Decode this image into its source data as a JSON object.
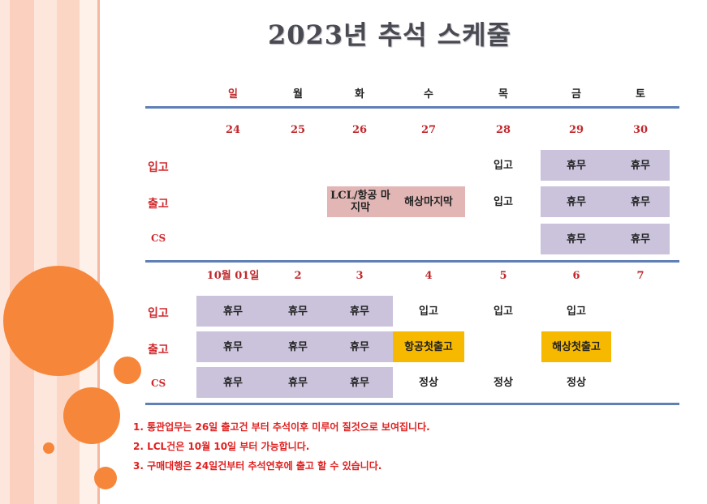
{
  "title": "2023년 추석 스케줄",
  "weekdays": [
    "일",
    "월",
    "화",
    "수",
    "목",
    "금",
    "토"
  ],
  "week1": {
    "dates": [
      "24",
      "25",
      "26",
      "27",
      "28",
      "29",
      "30"
    ],
    "inbound_label": "입고",
    "inbound": {
      "thu": "입고",
      "fri": "휴무",
      "sat": "휴무"
    },
    "outbound_label": "출고",
    "outbound": {
      "tue": "LCL/항공 마지막",
      "wed": "해상마지막",
      "thu": "입고",
      "fri": "휴무",
      "sat": "휴무"
    },
    "cs_label": "CS",
    "cs": {
      "fri": "휴무",
      "sat": "휴무"
    }
  },
  "week2": {
    "dates": [
      "10월 01일",
      "2",
      "3",
      "4",
      "5",
      "6",
      "7"
    ],
    "inbound_label": "입고",
    "inbound": {
      "sun": "휴무",
      "mon": "휴무",
      "tue": "휴무",
      "wed": "입고",
      "thu": "입고",
      "fri": "입고"
    },
    "outbound_label": "출고",
    "outbound": {
      "sun": "휴무",
      "mon": "휴무",
      "tue": "휴무",
      "wed": "항공첫출고",
      "fri": "해상첫출고"
    },
    "cs_label": "CS",
    "cs": {
      "sun": "휴무",
      "mon": "휴무",
      "tue": "휴무",
      "wed": "정상",
      "thu": "정상",
      "fri": "정상"
    }
  },
  "notes": [
    "1. 통관업무는 26일 출고건 부터 추석이후 미루어 질것으로 보여집니다.",
    "2. LCL건은 10월 10일 부터 가능합니다.",
    "3. 구매대행은 24일건부터 추석연후에 출고 할 수 있습니다."
  ],
  "colors": {
    "holiday_box": "#cbc3dc",
    "last_day_box": "#e1b6b4",
    "first_shipment_box": "#f7b900",
    "circle": "#f6863a",
    "divider": "#5f7fb5",
    "label_red": "#c0282c"
  }
}
